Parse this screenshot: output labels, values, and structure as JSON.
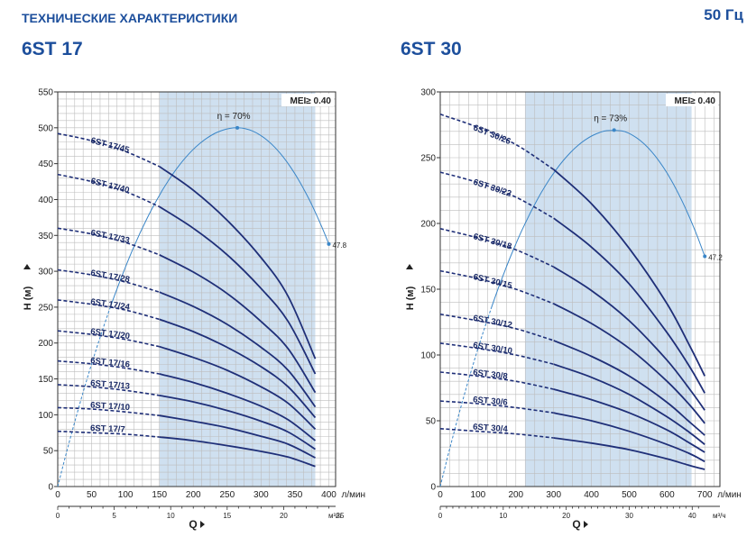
{
  "header": {
    "title": "ТЕХНИЧЕСКИЕ ХАРАКТЕРИСТИКИ",
    "frequency": "50 Гц"
  },
  "colors": {
    "curve": "#1f2f78",
    "efficiency": "#3a86c8",
    "band": "#cfe0f0",
    "grid": "#bdbdbd",
    "title": "#1d4f9c"
  },
  "chart_data": [
    {
      "type": "line",
      "title": "6ST 17",
      "mei": "MEI≥ 0.40",
      "ylabel": "H (м)",
      "xlabel": "Q",
      "x_unit": "л/мин",
      "x2_unit": "м³/ч",
      "xlim": [
        0,
        410
      ],
      "ylim": [
        0,
        550
      ],
      "x_ticks": [
        0,
        50,
        100,
        150,
        200,
        250,
        300,
        350,
        400
      ],
      "y_ticks": [
        0,
        50,
        100,
        150,
        200,
        250,
        300,
        350,
        400,
        450,
        500,
        550
      ],
      "x2_ticks": [
        0,
        5,
        10,
        15,
        20,
        25
      ],
      "band": [
        150,
        380
      ],
      "efficiency": {
        "label": "η = 70%",
        "end_label": "47.8",
        "peak": [
          265,
          500
        ],
        "end": [
          400,
          338
        ]
      },
      "series": [
        {
          "name": "6ST 17/45",
          "values": [
            [
              0,
              492
            ],
            [
              50,
              482
            ],
            [
              100,
              467
            ],
            [
              150,
              446
            ],
            [
              200,
              413
            ],
            [
              250,
              371
            ],
            [
              300,
              319
            ],
            [
              340,
              265
            ],
            [
              380,
              178
            ]
          ]
        },
        {
          "name": "6ST 17/40",
          "values": [
            [
              0,
              435
            ],
            [
              50,
              425
            ],
            [
              100,
              411
            ],
            [
              150,
              390
            ],
            [
              200,
              360
            ],
            [
              250,
              323
            ],
            [
              300,
              276
            ],
            [
              340,
              230
            ],
            [
              380,
              157
            ]
          ]
        },
        {
          "name": "6ST 17/33",
          "values": [
            [
              0,
              360
            ],
            [
              50,
              352
            ],
            [
              100,
              340
            ],
            [
              150,
              323
            ],
            [
              200,
              299
            ],
            [
              250,
              269
            ],
            [
              300,
              230
            ],
            [
              340,
              192
            ],
            [
              380,
              131
            ]
          ]
        },
        {
          "name": "6ST 17/28",
          "values": [
            [
              0,
              302
            ],
            [
              50,
              295
            ],
            [
              100,
              285
            ],
            [
              150,
              271
            ],
            [
              200,
              251
            ],
            [
              250,
              226
            ],
            [
              300,
              194
            ],
            [
              340,
              162
            ],
            [
              380,
              111
            ]
          ]
        },
        {
          "name": "6ST 17/24",
          "values": [
            [
              0,
              260
            ],
            [
              50,
              254
            ],
            [
              100,
              246
            ],
            [
              150,
              233
            ],
            [
              200,
              216
            ],
            [
              250,
              194
            ],
            [
              300,
              167
            ],
            [
              340,
              139
            ],
            [
              380,
              96
            ]
          ]
        },
        {
          "name": "6ST 17/20",
          "values": [
            [
              0,
              217
            ],
            [
              50,
              212
            ],
            [
              100,
              205
            ],
            [
              150,
              195
            ],
            [
              200,
              180
            ],
            [
              250,
              162
            ],
            [
              300,
              139
            ],
            [
              340,
              116
            ],
            [
              380,
              80
            ]
          ]
        },
        {
          "name": "6ST 17/16",
          "values": [
            [
              0,
              175
            ],
            [
              50,
              171
            ],
            [
              100,
              165
            ],
            [
              150,
              157
            ],
            [
              200,
              145
            ],
            [
              250,
              130
            ],
            [
              300,
              112
            ],
            [
              340,
              93
            ],
            [
              380,
              64
            ]
          ]
        },
        {
          "name": "6ST 17/13",
          "values": [
            [
              0,
              142
            ],
            [
              50,
              139
            ],
            [
              100,
              134
            ],
            [
              150,
              127
            ],
            [
              200,
              118
            ],
            [
              250,
              106
            ],
            [
              300,
              91
            ],
            [
              340,
              76
            ],
            [
              380,
              52
            ]
          ]
        },
        {
          "name": "6ST 17/10",
          "values": [
            [
              0,
              110
            ],
            [
              50,
              108
            ],
            [
              100,
              104
            ],
            [
              150,
              99
            ],
            [
              200,
              91
            ],
            [
              250,
              82
            ],
            [
              300,
              70
            ],
            [
              340,
              59
            ],
            [
              380,
              40
            ]
          ]
        },
        {
          "name": "6ST 17/7",
          "values": [
            [
              0,
              77
            ],
            [
              50,
              75
            ],
            [
              100,
              73
            ],
            [
              150,
              69
            ],
            [
              200,
              64
            ],
            [
              250,
              57
            ],
            [
              300,
              49
            ],
            [
              340,
              41
            ],
            [
              380,
              28
            ]
          ]
        }
      ]
    },
    {
      "type": "line",
      "title": "6ST 30",
      "mei": "MEI≥ 0.40",
      "ylabel": "H (м)",
      "xlabel": "Q",
      "x_unit": "л/мин",
      "x2_unit": "м³/ч",
      "xlim": [
        0,
        740
      ],
      "ylim": [
        0,
        300
      ],
      "x_ticks": [
        0,
        100,
        200,
        300,
        400,
        500,
        600,
        700
      ],
      "y_ticks": [
        0,
        50,
        100,
        150,
        200,
        250,
        300
      ],
      "x2_ticks": [
        0,
        10,
        20,
        30,
        40
      ],
      "band": [
        225,
        665
      ],
      "efficiency": {
        "label": "η = 73%",
        "end_label": "47.2",
        "peak": [
          460,
          271
        ],
        "end": [
          700,
          175
        ]
      },
      "series": [
        {
          "name": "6ST 30/26",
          "values": [
            [
              0,
              283
            ],
            [
              100,
              273
            ],
            [
              200,
              260
            ],
            [
              300,
              241
            ],
            [
              400,
              215
            ],
            [
              500,
              181
            ],
            [
              600,
              139
            ],
            [
              660,
              107
            ],
            [
              700,
              84
            ]
          ]
        },
        {
          "name": "6ST 30/22",
          "values": [
            [
              0,
              239
            ],
            [
              100,
              231
            ],
            [
              200,
              220
            ],
            [
              300,
              204
            ],
            [
              400,
              182
            ],
            [
              500,
              154
            ],
            [
              600,
              117
            ],
            [
              660,
              91
            ],
            [
              700,
              71
            ]
          ]
        },
        {
          "name": "6ST 30/18",
          "values": [
            [
              0,
              196
            ],
            [
              100,
              189
            ],
            [
              200,
              180
            ],
            [
              300,
              167
            ],
            [
              400,
              149
            ],
            [
              500,
              126
            ],
            [
              600,
              96
            ],
            [
              660,
              74
            ],
            [
              700,
              58
            ]
          ]
        },
        {
          "name": "6ST 30/15",
          "values": [
            [
              0,
              164
            ],
            [
              100,
              158
            ],
            [
              200,
              150
            ],
            [
              300,
              139
            ],
            [
              400,
              124
            ],
            [
              500,
              105
            ],
            [
              600,
              80
            ],
            [
              660,
              62
            ],
            [
              700,
              48
            ]
          ]
        },
        {
          "name": "6ST 30/12",
          "values": [
            [
              0,
              131
            ],
            [
              100,
              126
            ],
            [
              200,
              120
            ],
            [
              300,
              111
            ],
            [
              400,
              99
            ],
            [
              500,
              84
            ],
            [
              600,
              64
            ],
            [
              660,
              49
            ],
            [
              700,
              39
            ]
          ]
        },
        {
          "name": "6ST 30/10",
          "values": [
            [
              0,
              109
            ],
            [
              100,
              105
            ],
            [
              200,
              100
            ],
            [
              300,
              93
            ],
            [
              400,
              83
            ],
            [
              500,
              70
            ],
            [
              600,
              53
            ],
            [
              660,
              41
            ],
            [
              700,
              32
            ]
          ]
        },
        {
          "name": "6ST 30/8",
          "values": [
            [
              0,
              87
            ],
            [
              100,
              84
            ],
            [
              200,
              80
            ],
            [
              300,
              74
            ],
            [
              400,
              66
            ],
            [
              500,
              56
            ],
            [
              600,
              43
            ],
            [
              660,
              33
            ],
            [
              700,
              26
            ]
          ]
        },
        {
          "name": "6ST 30/6",
          "values": [
            [
              0,
              65
            ],
            [
              100,
              63
            ],
            [
              200,
              60
            ],
            [
              300,
              56
            ],
            [
              400,
              50
            ],
            [
              500,
              42
            ],
            [
              600,
              32
            ],
            [
              660,
              25
            ],
            [
              700,
              19
            ]
          ]
        },
        {
          "name": "6ST 30/4",
          "values": [
            [
              0,
              44
            ],
            [
              100,
              42
            ],
            [
              200,
              40
            ],
            [
              300,
              37
            ],
            [
              400,
              33
            ],
            [
              500,
              28
            ],
            [
              600,
              21
            ],
            [
              660,
              16
            ],
            [
              700,
              13
            ]
          ]
        }
      ]
    }
  ]
}
